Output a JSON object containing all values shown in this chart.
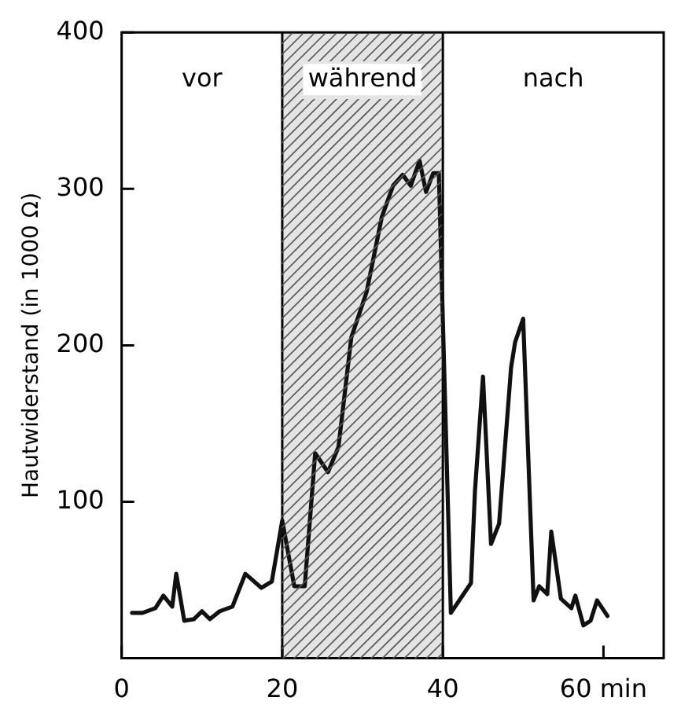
{
  "chart_data": {
    "type": "line",
    "ylabel": "Hautwiderstand (in 1000 Ω)",
    "xlim": [
      0,
      67.5
    ],
    "ylim": [
      0,
      400
    ],
    "xticks": [
      0,
      20,
      40,
      {
        "value": 60,
        "label": "60 min"
      }
    ],
    "yticks": [
      100,
      200,
      300,
      400
    ],
    "marker": "none",
    "line_style": "solid",
    "bands": [
      {
        "axis": "x",
        "from": 20,
        "to": 40,
        "label": "während",
        "color": "#e4e4e4"
      }
    ],
    "annotations": [
      "vor",
      "nach"
    ],
    "series": [
      {
        "color": "#111111",
        "x": [
          1.3,
          2.6,
          4.2,
          5.2,
          6.3,
          6.8,
          7.8,
          9,
          10,
          11,
          12.2,
          13.8,
          15.4,
          17.4,
          18.7,
          20,
          21.5,
          22.8,
          24.1,
          25.7,
          27,
          28.6,
          30.5,
          32.4,
          33.8,
          35,
          36,
          37.1,
          37.9,
          38.8,
          39.5,
          41,
          43.5,
          44,
          45,
          46,
          47,
          48.5,
          49,
          50,
          51.3,
          52,
          53,
          53.5,
          54.7,
          56,
          56.5,
          57.5,
          58.4,
          59.2,
          60.5
        ],
        "values": [
          29,
          29,
          32,
          40,
          33,
          54,
          24,
          25,
          30,
          25,
          30,
          33,
          54,
          45,
          49,
          88,
          46,
          46,
          131,
          119,
          135,
          205,
          234,
          282,
          302,
          309,
          302,
          318,
          298,
          310,
          310,
          29,
          48,
          107,
          180,
          73,
          86,
          186,
          202,
          217,
          37,
          46,
          41,
          81,
          38,
          32,
          40,
          21,
          24,
          37,
          27
        ]
      }
    ]
  }
}
